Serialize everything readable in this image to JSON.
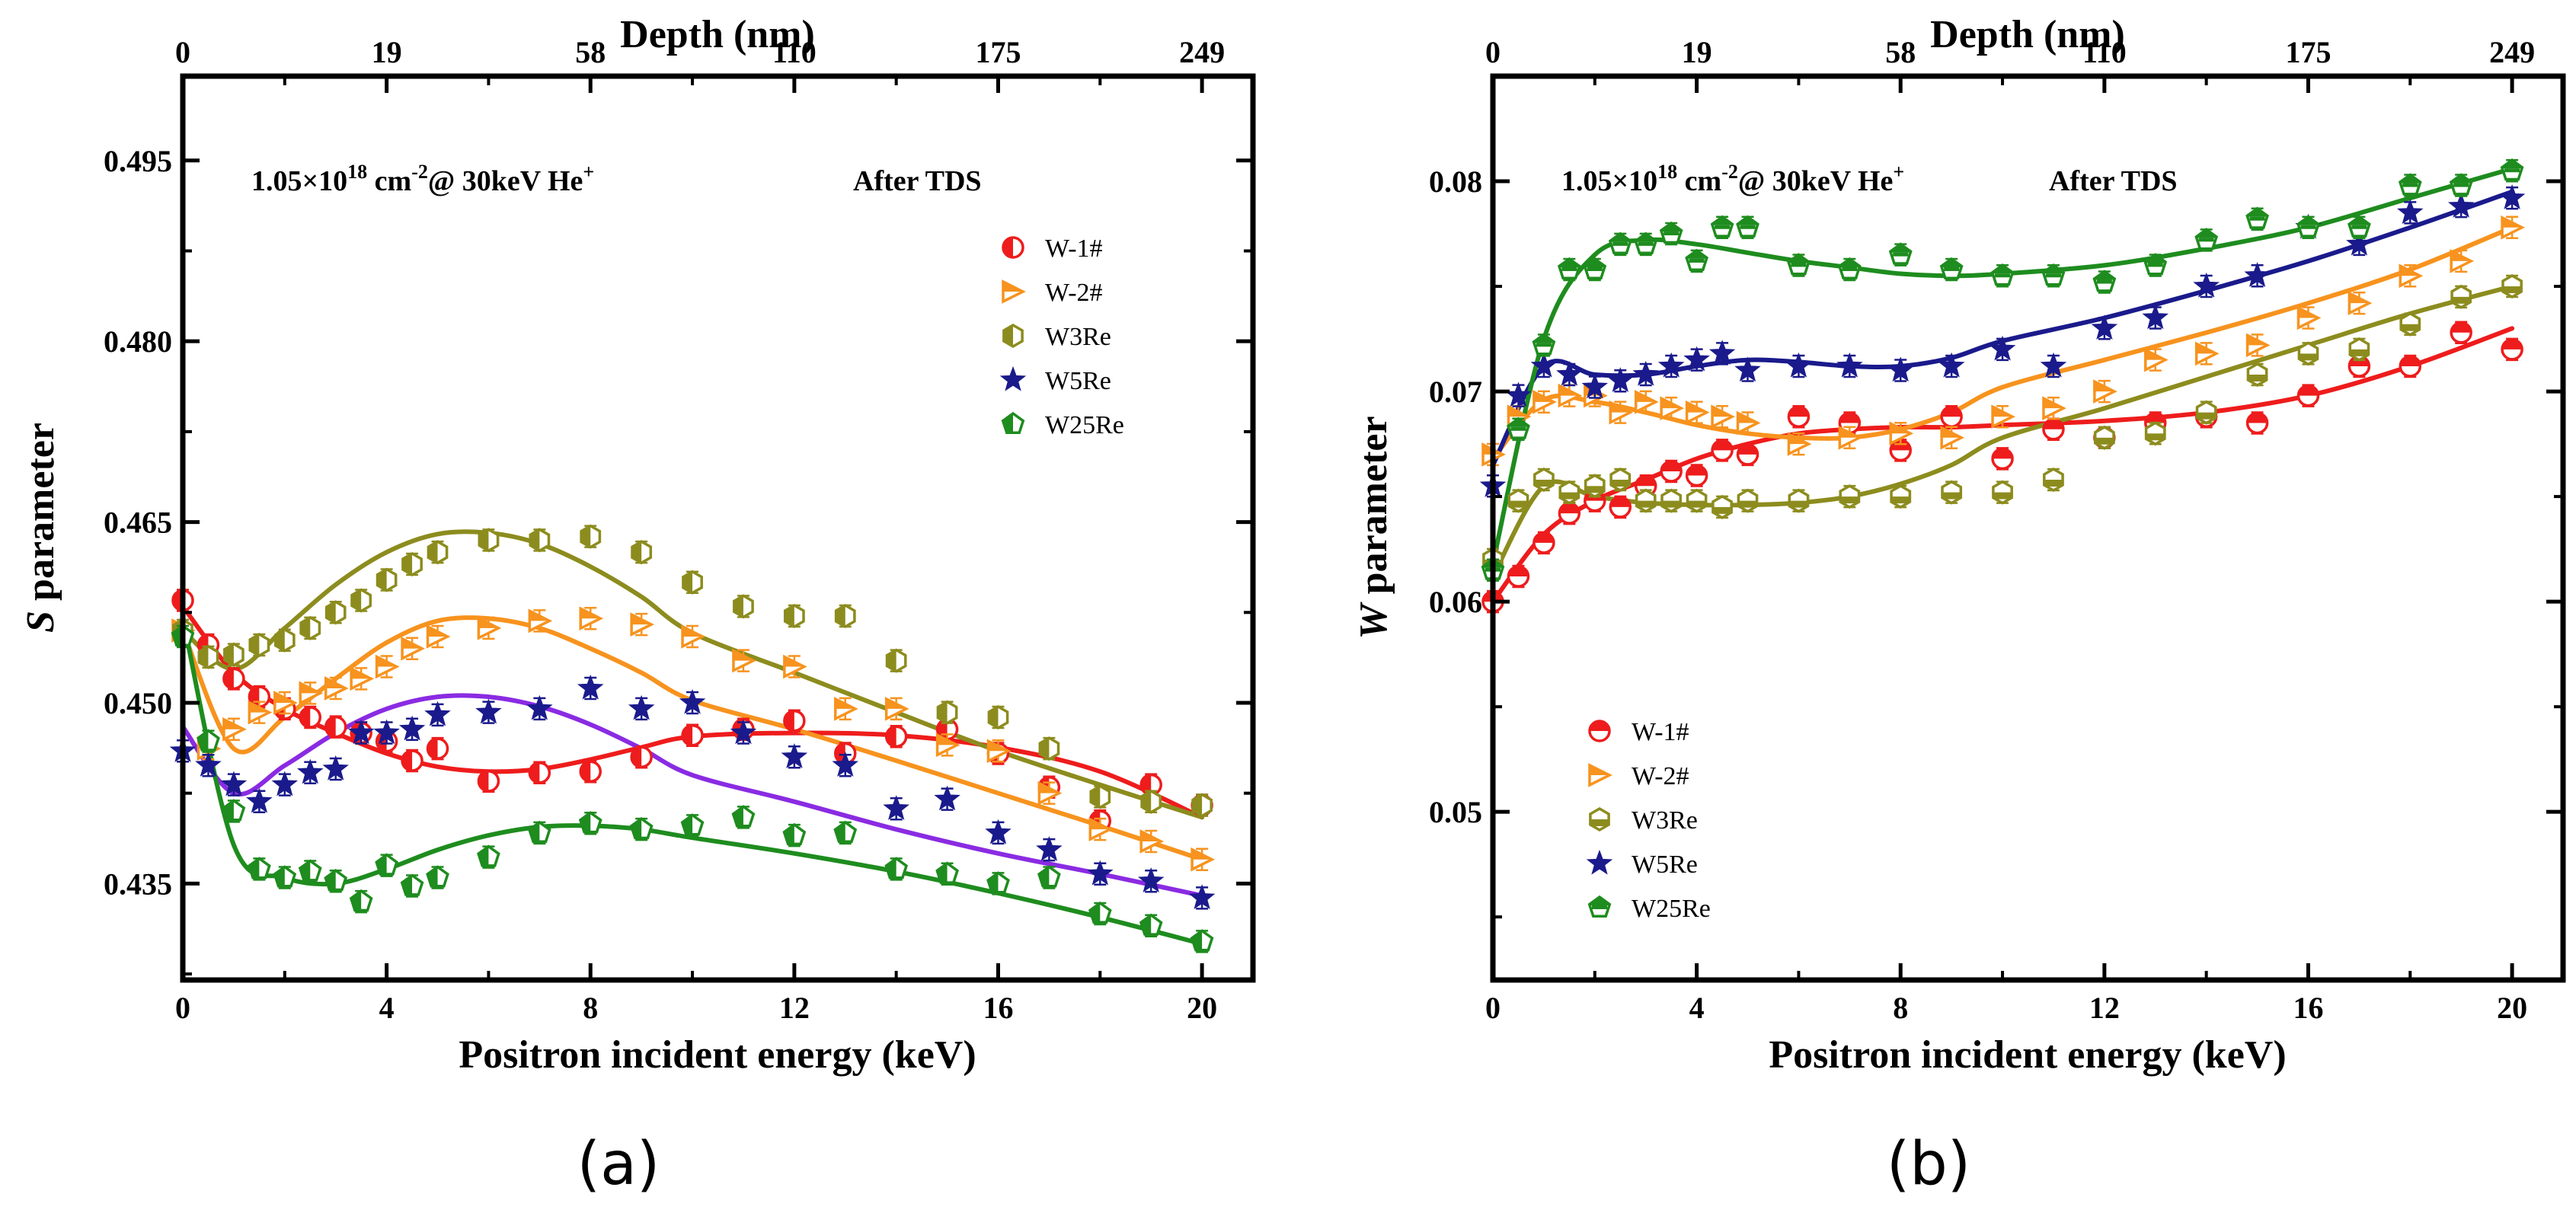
{
  "panels": [
    {
      "id": "a",
      "subfig_label": "(a)",
      "ylabel_italic": "S",
      "ylabel_rest": " parameter",
      "xlabel": "Positron incident energy (keV)",
      "top_label": "Depth (nm)",
      "ann_prefix": "1.05×10",
      "ann_exp1": "18",
      "ann_mid": " cm",
      "ann_exp2": "-2",
      "ann_after": "@ 30keV He",
      "ann_exp3": "+",
      "ann_tds": "After TDS",
      "xlim": [
        0,
        21
      ],
      "ylim": [
        0.427,
        0.502
      ],
      "xticks": [
        0,
        4,
        8,
        12,
        16,
        20
      ],
      "yticks": [
        0.435,
        0.45,
        0.465,
        0.48,
        0.495
      ],
      "ytick_labels": [
        "0.435",
        "0.450",
        "0.465",
        "0.480",
        "0.495"
      ],
      "top_ticks": [
        0,
        2,
        4,
        6,
        8,
        10,
        12,
        14,
        16,
        18,
        20
      ],
      "top_tick_labels": [
        "0",
        "19",
        "58",
        "110",
        "175",
        "249"
      ],
      "legend_position": "upper-right"
    },
    {
      "id": "b",
      "subfig_label": "(b)",
      "ylabel_italic": "W",
      "ylabel_rest": " parameter",
      "xlabel": "Positron incident energy (keV)",
      "top_label": "Depth (nm)",
      "ann_prefix": "1.05×10",
      "ann_exp1": "18",
      "ann_mid": " cm",
      "ann_exp2": "-2",
      "ann_after": "@ 30keV He",
      "ann_exp3": "+",
      "ann_tds": "After TDS",
      "xlim": [
        0,
        21
      ],
      "ylim": [
        0.042,
        0.085
      ],
      "xticks": [
        0,
        4,
        8,
        12,
        16,
        20
      ],
      "yticks": [
        0.05,
        0.06,
        0.07,
        0.08
      ],
      "ytick_labels": [
        "0.05",
        "0.06",
        "0.07",
        "0.08"
      ],
      "top_ticks": [
        0,
        2,
        4,
        6,
        8,
        10,
        12,
        14,
        16,
        18,
        20
      ],
      "top_tick_labels": [
        "0",
        "19",
        "58",
        "110",
        "175",
        "249"
      ],
      "legend_position": "lower-left"
    }
  ],
  "chart_data": [
    {
      "type": "scatter",
      "title": "(a)",
      "xlabel": "Positron incident energy (keV)",
      "ylabel": "S parameter",
      "top_axis_label": "Depth (nm)",
      "xlim": [
        0,
        21
      ],
      "ylim": [
        0.427,
        0.502
      ],
      "series": [
        {
          "name": "W-1#",
          "color": "#ee1c1c",
          "marker": "circle-half",
          "fit_color": "#ee1c1c",
          "x": [
            0,
            0.5,
            1,
            1.5,
            2,
            2.5,
            3,
            3.5,
            4,
            4.5,
            5,
            6,
            7,
            8,
            9,
            10,
            11,
            12,
            13,
            14,
            15,
            16,
            17,
            18,
            19,
            20
          ],
          "y": [
            0.4585,
            0.4548,
            0.452,
            0.4505,
            0.4495,
            0.4488,
            0.448,
            0.4475,
            0.4468,
            0.4452,
            0.4462,
            0.4435,
            0.4442,
            0.4443,
            0.4455,
            0.4473,
            0.4478,
            0.4485,
            0.4458,
            0.4472,
            0.4478,
            0.4458,
            0.443,
            0.4402,
            0.4432,
            0.4415
          ],
          "fit": [
            0.458,
            0.4525,
            0.4495,
            0.4475,
            0.4458,
            0.4447,
            0.4443,
            0.4445,
            0.4453,
            0.4463,
            0.4472,
            0.4475,
            0.4473,
            0.4463,
            0.4443,
            0.4405
          ]
        },
        {
          "name": "W-2#",
          "color": "#f7931e",
          "marker": "triangle-right",
          "fit_color": "#f7931e",
          "x": [
            0,
            0.5,
            1,
            1.5,
            2,
            2.5,
            3,
            3.5,
            4,
            4.5,
            5,
            6,
            7,
            8,
            9,
            10,
            11,
            12,
            13,
            14,
            15,
            16,
            17,
            18,
            19,
            20
          ],
          "y": [
            0.456,
            0.4462,
            0.4478,
            0.4492,
            0.45,
            0.4508,
            0.4512,
            0.452,
            0.453,
            0.4545,
            0.4555,
            0.4562,
            0.4568,
            0.457,
            0.4565,
            0.4555,
            0.4535,
            0.453,
            0.4495,
            0.4495,
            0.4465,
            0.446,
            0.4425,
            0.4395,
            0.4385,
            0.437
          ],
          "fit": [
            0.456,
            0.4462,
            0.4488,
            0.452,
            0.455,
            0.4568,
            0.457,
            0.4562,
            0.4545,
            0.4525,
            0.4502,
            0.4478,
            0.4452,
            0.4425,
            0.4398,
            0.437
          ]
        },
        {
          "name": "W3Re",
          "color": "#8c8c1e",
          "marker": "hexagon",
          "fit_color": "#8c8c1e",
          "x": [
            0,
            0.5,
            1,
            1.5,
            2,
            2.5,
            3,
            3.5,
            4,
            4.5,
            5,
            6,
            7,
            8,
            9,
            10,
            11,
            12,
            13,
            14,
            15,
            16,
            17,
            18,
            19,
            20
          ],
          "y": [
            0.456,
            0.4538,
            0.454,
            0.4548,
            0.4552,
            0.4562,
            0.4575,
            0.4585,
            0.4602,
            0.4615,
            0.4625,
            0.4635,
            0.4635,
            0.4638,
            0.4625,
            0.46,
            0.458,
            0.4572,
            0.4572,
            0.4535,
            0.4492,
            0.4488,
            0.4462,
            0.4422,
            0.4418,
            0.4415
          ],
          "fit": [
            0.456,
            0.4528,
            0.4562,
            0.4598,
            0.4625,
            0.464,
            0.4641,
            0.4632,
            0.4613,
            0.4588,
            0.4558,
            0.4525,
            0.4492,
            0.446,
            0.4432,
            0.4405
          ]
        },
        {
          "name": "W5Re",
          "color": "#1a1a8c",
          "marker": "star",
          "fit_color": "#8a2be2",
          "x": [
            0,
            0.5,
            1,
            1.5,
            2,
            2.5,
            3,
            3.5,
            4,
            4.5,
            5,
            6,
            7,
            8,
            9,
            10,
            11,
            12,
            13,
            14,
            15,
            16,
            17,
            18,
            19,
            20
          ],
          "y": [
            0.446,
            0.4448,
            0.4432,
            0.4418,
            0.4432,
            0.4442,
            0.4445,
            0.4475,
            0.4475,
            0.4478,
            0.449,
            0.4492,
            0.4495,
            0.4512,
            0.4495,
            0.45,
            0.4475,
            0.4455,
            0.4448,
            0.4412,
            0.442,
            0.4392,
            0.4378,
            0.4358,
            0.4352,
            0.4338
          ],
          "fit": [
            0.448,
            0.4425,
            0.4448,
            0.4475,
            0.4495,
            0.4505,
            0.4505,
            0.4497,
            0.4482,
            0.4462,
            0.444,
            0.4418,
            0.4395,
            0.4375,
            0.4358,
            0.434
          ]
        },
        {
          "name": "W25Re",
          "color": "#1e8c1e",
          "marker": "pentagon",
          "fit_color": "#1e8c1e",
          "x": [
            0,
            0.5,
            1,
            1.5,
            2,
            2.5,
            3,
            3.5,
            4,
            4.5,
            5,
            6,
            7,
            8,
            9,
            10,
            11,
            12,
            13,
            14,
            15,
            16,
            17,
            18,
            19,
            20
          ],
          "y": [
            0.4555,
            0.4468,
            0.441,
            0.4362,
            0.4355,
            0.436,
            0.4352,
            0.4335,
            0.4365,
            0.4348,
            0.4355,
            0.4372,
            0.4392,
            0.44,
            0.4395,
            0.4398,
            0.4405,
            0.439,
            0.4392,
            0.4362,
            0.4358,
            0.435,
            0.4355,
            0.4325,
            0.4315,
            0.4302
          ],
          "fit": [
            0.457,
            0.4382,
            0.4355,
            0.435,
            0.4362,
            0.4378,
            0.439,
            0.4397,
            0.4398,
            0.4395,
            0.4388,
            0.4375,
            0.436,
            0.4342,
            0.4322,
            0.43
          ]
        }
      ]
    },
    {
      "type": "scatter",
      "title": "(b)",
      "xlabel": "Positron incident energy (keV)",
      "ylabel": "W parameter",
      "top_axis_label": "Depth (nm)",
      "xlim": [
        0,
        21
      ],
      "ylim": [
        0.042,
        0.085
      ],
      "series": [
        {
          "name": "W-1#",
          "color": "#ee1c1c",
          "marker": "circle-half-h",
          "fit_color": "#ee1c1c",
          "x": [
            0,
            0.5,
            1,
            1.5,
            2,
            2.5,
            3,
            3.5,
            4,
            4.5,
            5,
            6,
            7,
            8,
            9,
            10,
            11,
            12,
            13,
            14,
            15,
            16,
            17,
            18,
            19,
            20
          ],
          "y": [
            0.06,
            0.0612,
            0.0628,
            0.0642,
            0.0648,
            0.0645,
            0.0655,
            0.0662,
            0.066,
            0.0672,
            0.067,
            0.0688,
            0.0685,
            0.0672,
            0.0688,
            0.0668,
            0.0682,
            0.0678,
            0.0685,
            0.0688,
            0.0685,
            0.0698,
            0.0712,
            0.0712,
            0.0728,
            0.072
          ],
          "fit": [
            0.06,
            0.0632,
            0.0648,
            0.0658,
            0.0668,
            0.0675,
            0.068,
            0.0682,
            0.0683,
            0.0683,
            0.0684,
            0.0686,
            0.069,
            0.0698,
            0.0712,
            0.073
          ]
        },
        {
          "name": "W-2#",
          "color": "#f7931e",
          "marker": "triangle-right",
          "fit_color": "#f7931e",
          "x": [
            0,
            0.5,
            1,
            1.5,
            2,
            2.5,
            3,
            3.5,
            4,
            4.5,
            5,
            6,
            7,
            8,
            9,
            10,
            11,
            12,
            13,
            14,
            15,
            16,
            17,
            18,
            19,
            20
          ],
          "y": [
            0.067,
            0.0688,
            0.0695,
            0.0698,
            0.0698,
            0.069,
            0.0695,
            0.0692,
            0.069,
            0.0688,
            0.0685,
            0.0675,
            0.0678,
            0.068,
            0.0678,
            0.0688,
            0.0692,
            0.07,
            0.0715,
            0.0718,
            0.0722,
            0.0735,
            0.0742,
            0.0755,
            0.0762,
            0.0778
          ],
          "fit": [
            0.0668,
            0.0696,
            0.0695,
            0.069,
            0.0684,
            0.068,
            0.0678,
            0.0678,
            0.0682,
            0.069,
            0.0702,
            0.0715,
            0.0728,
            0.0742,
            0.0758,
            0.0778
          ]
        },
        {
          "name": "W3Re",
          "color": "#8c8c1e",
          "marker": "hexagon-half",
          "fit_color": "#8c8c1e",
          "x": [
            0,
            0.5,
            1,
            1.5,
            2,
            2.5,
            3,
            3.5,
            4,
            4.5,
            5,
            6,
            7,
            8,
            9,
            10,
            11,
            12,
            13,
            14,
            15,
            16,
            17,
            18,
            19,
            20
          ],
          "y": [
            0.062,
            0.0648,
            0.0658,
            0.0652,
            0.0655,
            0.0658,
            0.0648,
            0.0648,
            0.0648,
            0.0645,
            0.0648,
            0.0648,
            0.065,
            0.065,
            0.0652,
            0.0652,
            0.0658,
            0.0678,
            0.068,
            0.069,
            0.0708,
            0.0718,
            0.072,
            0.0732,
            0.0745,
            0.075
          ],
          "fit": [
            0.0612,
            0.0655,
            0.065,
            0.0647,
            0.0646,
            0.0646,
            0.0647,
            0.065,
            0.0656,
            0.0665,
            0.0678,
            0.0692,
            0.0707,
            0.0722,
            0.0737,
            0.075
          ]
        },
        {
          "name": "W5Re",
          "color": "#1a1a8c",
          "marker": "star",
          "fit_color": "#1a1a8c",
          "x": [
            0,
            0.5,
            1,
            1.5,
            2,
            2.5,
            3,
            3.5,
            4,
            4.5,
            5,
            6,
            7,
            8,
            9,
            10,
            11,
            12,
            13,
            14,
            15,
            16,
            17,
            18,
            19,
            20
          ],
          "y": [
            0.0655,
            0.0698,
            0.0712,
            0.0708,
            0.0702,
            0.0705,
            0.0708,
            0.0712,
            0.0715,
            0.0718,
            0.071,
            0.0712,
            0.0712,
            0.071,
            0.0712,
            0.072,
            0.0712,
            0.073,
            0.0735,
            0.075,
            0.0755,
            0.0778,
            0.077,
            0.0785,
            0.0788,
            0.0792
          ],
          "fit": [
            0.0665,
            0.0712,
            0.0708,
            0.0708,
            0.0712,
            0.0715,
            0.0714,
            0.0712,
            0.0712,
            0.0716,
            0.0724,
            0.0735,
            0.0748,
            0.0762,
            0.0778,
            0.0795
          ]
        },
        {
          "name": "W25Re",
          "color": "#1e8c1e",
          "marker": "pentagon-half",
          "fit_color": "#1e8c1e",
          "x": [
            0,
            0.5,
            1,
            1.5,
            2,
            2.5,
            3,
            3.5,
            4,
            4.5,
            5,
            6,
            7,
            8,
            9,
            10,
            11,
            12,
            13,
            14,
            15,
            16,
            17,
            18,
            19,
            20
          ],
          "y": [
            0.0615,
            0.0682,
            0.0722,
            0.0758,
            0.0758,
            0.077,
            0.077,
            0.0775,
            0.0762,
            0.0778,
            0.0778,
            0.076,
            0.0758,
            0.0765,
            0.0758,
            0.0755,
            0.0755,
            0.0752,
            0.076,
            0.0772,
            0.0782,
            0.0778,
            0.0778,
            0.0798,
            0.0798,
            0.0805
          ],
          "fit": [
            0.0618,
            0.0725,
            0.0765,
            0.0772,
            0.077,
            0.0766,
            0.0762,
            0.0759,
            0.0756,
            0.0755,
            0.0756,
            0.076,
            0.0768,
            0.0778,
            0.0792,
            0.0806
          ]
        }
      ]
    }
  ],
  "fit_x": [
    0,
    1,
    2,
    3,
    4,
    5,
    6,
    7,
    8,
    9,
    10,
    12,
    14,
    16,
    18,
    20
  ]
}
